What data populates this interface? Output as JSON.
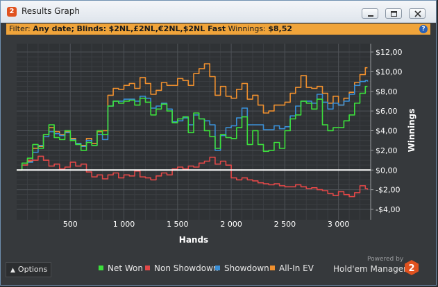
{
  "window": {
    "title": "Results Graph",
    "logo_text": "2"
  },
  "filter": {
    "label": "Filter:",
    "date": "Any date;",
    "blinds_label": "Blinds:",
    "blinds": "$2NL,£2NL,€2NL,$2NL Fast",
    "winnings_label": "Winnings:",
    "winnings": "$8,52",
    "help": "?"
  },
  "options": {
    "label": "Options"
  },
  "branding": {
    "powered": "Powered by",
    "name": "Hold'em Manager",
    "logo_text": "2"
  },
  "colors": {
    "net_won": "#3ce03c",
    "non_showdown": "#e24848",
    "showdown": "#3a8fd6",
    "allin_ev": "#f0902e",
    "zero_line": "#ffffff"
  },
  "chart_data": {
    "type": "line",
    "xlabel": "Hands",
    "ylabel": "Winnings",
    "xlim": [
      0,
      3300
    ],
    "ylim": [
      -4,
      12
    ],
    "x_ticks": [
      500,
      1000,
      1500,
      2000,
      2500,
      3000
    ],
    "x_tick_labels": [
      "500",
      "1 000",
      "1 500",
      "2 000",
      "2 500",
      "3 000"
    ],
    "y_ticks": [
      12,
      10,
      8,
      6,
      4,
      2,
      0,
      -2,
      -4
    ],
    "y_tick_labels": [
      "$12,00",
      "$10,00",
      "$8,00",
      "$6,00",
      "$4,00",
      "$2,00",
      "$0,00",
      "-$2,00",
      "-$4,00"
    ],
    "grid": true,
    "legend": "bottom",
    "series": [
      {
        "name": "Net Won",
        "color": "#3ce03c",
        "x": [
          0,
          50,
          100,
          150,
          200,
          250,
          300,
          350,
          400,
          450,
          500,
          550,
          600,
          650,
          700,
          750,
          800,
          850,
          900,
          950,
          1000,
          1050,
          1100,
          1150,
          1200,
          1250,
          1300,
          1350,
          1400,
          1450,
          1500,
          1550,
          1600,
          1650,
          1700,
          1750,
          1800,
          1850,
          1900,
          1950,
          2000,
          2050,
          2100,
          2150,
          2200,
          2250,
          2300,
          2350,
          2400,
          2450,
          2500,
          2550,
          2600,
          2650,
          2700,
          2750,
          2800,
          2850,
          2900,
          2950,
          3000,
          3050,
          3100,
          3150,
          3200,
          3250,
          3270
        ],
        "y": [
          0,
          0.7,
          1.2,
          2.6,
          2.2,
          3.6,
          4.6,
          3.3,
          3.1,
          4.0,
          3.0,
          2.6,
          2.0,
          2.8,
          2.5,
          4.0,
          3.6,
          6.5,
          7.0,
          6.8,
          7.0,
          7.1,
          6.6,
          7.3,
          6.9,
          5.6,
          6.2,
          6.7,
          6.0,
          4.8,
          5.2,
          5.4,
          3.8,
          5.8,
          5.2,
          4.0,
          3.4,
          2.2,
          3.6,
          3.3,
          3.2,
          4.3,
          5.4,
          2.6,
          4.0,
          2.6,
          1.9,
          2.0,
          2.8,
          2.2,
          4.0,
          5.2,
          5.6,
          7.0,
          6.8,
          6.2,
          7.2,
          4.6,
          4.0,
          4.3,
          4.3,
          5.0,
          5.6,
          6.8,
          7.8,
          8.5,
          8.5
        ]
      },
      {
        "name": "Non Showdown",
        "color": "#e24848",
        "x": [
          0,
          50,
          100,
          150,
          200,
          250,
          300,
          350,
          400,
          450,
          500,
          550,
          600,
          650,
          700,
          750,
          800,
          850,
          900,
          950,
          1000,
          1050,
          1100,
          1150,
          1200,
          1250,
          1300,
          1350,
          1400,
          1450,
          1500,
          1550,
          1600,
          1650,
          1700,
          1750,
          1800,
          1850,
          1900,
          1950,
          2000,
          2050,
          2100,
          2150,
          2200,
          2250,
          2300,
          2350,
          2400,
          2450,
          2500,
          2550,
          2600,
          2650,
          2700,
          2750,
          2800,
          2850,
          2900,
          2950,
          3000,
          3050,
          3100,
          3150,
          3200,
          3250,
          3270
        ],
        "y": [
          0,
          0.5,
          1.0,
          1.0,
          1.4,
          1.0,
          0.4,
          0.6,
          0.1,
          0.3,
          0.8,
          0.4,
          0.6,
          -0.2,
          -0.7,
          -0.5,
          -0.9,
          -0.5,
          -0.3,
          -0.8,
          -0.5,
          -0.6,
          -0.1,
          -0.7,
          -0.8,
          -1.0,
          -0.6,
          -0.3,
          -0.5,
          0.1,
          0.3,
          0.1,
          0.4,
          0.3,
          0.7,
          0.9,
          1.3,
          0.6,
          0.9,
          0.5,
          -0.8,
          -1.0,
          -0.8,
          -1.0,
          -1.1,
          -1.3,
          -1.4,
          -1.5,
          -1.4,
          -1.6,
          -1.7,
          -1.7,
          -1.5,
          -1.7,
          -1.9,
          -1.8,
          -2.0,
          -2.1,
          -2.4,
          -2.6,
          -2.2,
          -2.5,
          -2.7,
          -2.3,
          -1.6,
          -1.9,
          -2.0
        ]
      },
      {
        "name": "Showdown",
        "color": "#3a8fd6",
        "x": [
          0,
          50,
          100,
          150,
          200,
          250,
          300,
          350,
          400,
          450,
          500,
          550,
          600,
          650,
          700,
          750,
          800,
          850,
          900,
          950,
          1000,
          1050,
          1100,
          1150,
          1200,
          1250,
          1300,
          1350,
          1400,
          1450,
          1500,
          1550,
          1600,
          1650,
          1700,
          1750,
          1800,
          1850,
          1900,
          1950,
          2000,
          2050,
          2100,
          2150,
          2200,
          2250,
          2300,
          2350,
          2400,
          2450,
          2500,
          2550,
          2600,
          2650,
          2700,
          2750,
          2800,
          2850,
          2900,
          2950,
          3000,
          3050,
          3100,
          3150,
          3200,
          3250,
          3270
        ],
        "y": [
          0,
          0.5,
          0.8,
          1.8,
          2.5,
          3.4,
          3.9,
          3.7,
          3.5,
          3.8,
          3.1,
          2.7,
          2.4,
          3.0,
          2.5,
          3.6,
          3.1,
          6.5,
          7.0,
          7.0,
          7.2,
          7.2,
          7.0,
          7.5,
          7.3,
          6.3,
          6.5,
          6.8,
          6.2,
          4.9,
          5.0,
          5.3,
          4.6,
          5.6,
          5.2,
          5.0,
          4.6,
          2.0,
          3.5,
          4.3,
          4.5,
          5.3,
          6.3,
          4.6,
          4.6,
          4.6,
          4.1,
          4.1,
          4.5,
          4.2,
          4.4,
          5.5,
          6.5,
          7.0,
          7.0,
          6.8,
          7.7,
          6.9,
          6.2,
          6.8,
          6.6,
          7.0,
          7.7,
          8.6,
          9.0,
          9.1,
          9.0
        ]
      },
      {
        "name": "All-In EV",
        "color": "#f0902e",
        "x": [
          0,
          50,
          100,
          150,
          200,
          250,
          300,
          350,
          400,
          450,
          500,
          550,
          600,
          650,
          700,
          750,
          800,
          850,
          900,
          950,
          1000,
          1050,
          1100,
          1150,
          1200,
          1250,
          1300,
          1350,
          1400,
          1450,
          1500,
          1550,
          1600,
          1650,
          1700,
          1750,
          1800,
          1850,
          1900,
          1950,
          2000,
          2050,
          2100,
          2150,
          2200,
          2250,
          2300,
          2350,
          2400,
          2450,
          2500,
          2550,
          2600,
          2650,
          2700,
          2750,
          2800,
          2850,
          2900,
          2950,
          3000,
          3050,
          3100,
          3150,
          3200,
          3250,
          3270
        ],
        "y": [
          0,
          0.5,
          0.9,
          2.2,
          2.4,
          3.6,
          4.3,
          3.9,
          3.6,
          3.9,
          3.2,
          2.7,
          2.5,
          3.2,
          2.7,
          3.9,
          4.0,
          7.6,
          8.3,
          8.2,
          8.6,
          8.8,
          8.3,
          9.4,
          8.8,
          7.7,
          8.1,
          8.9,
          8.6,
          8.6,
          9.3,
          9.1,
          8.6,
          9.8,
          10.3,
          10.8,
          9.5,
          7.6,
          8.5,
          7.5,
          7.3,
          8.2,
          8.8,
          7.2,
          7.6,
          6.6,
          5.8,
          6.0,
          6.6,
          6.6,
          6.9,
          7.8,
          8.4,
          9.6,
          8.4,
          8.3,
          8.5,
          7.8,
          6.8,
          7.5,
          6.6,
          7.3,
          7.9,
          8.9,
          9.7,
          10.4,
          10.4
        ]
      }
    ]
  }
}
